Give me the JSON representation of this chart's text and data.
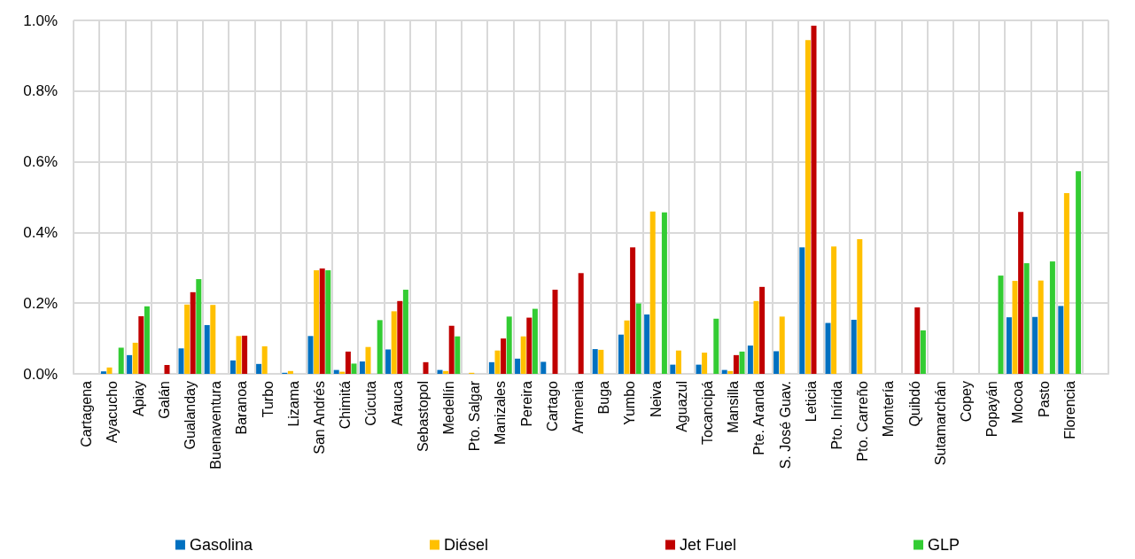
{
  "chart_data": {
    "type": "bar",
    "categories": [
      "Cartagena",
      "Ayacucho",
      "Apiay",
      "Galán",
      "Gualanday",
      "Buenaventura",
      "Baranoa",
      "Turbo",
      "Lizama",
      "San Andrés",
      "Chimitá",
      "Cúcuta",
      "Arauca",
      "Sebastopol",
      "Medellín",
      "Pto. Salgar",
      "Manizales",
      "Pereira",
      "Cartago",
      "Armenia",
      "Buga",
      "Yumbo",
      "Neiva",
      "Aguazul",
      "Tocancipá",
      "Mansilla",
      "Pte. Aranda",
      "S. José Guav.",
      "Leticia",
      "Pto. Inírida",
      "Pto. Carreño",
      "Montería",
      "Quibdó",
      "Sutamarchán",
      "Copey",
      "Popayán",
      "Mocoa",
      "Pasto",
      "Florencia",
      null
    ],
    "series": [
      {
        "name": "Gasolina",
        "color": "#0070c0",
        "values": [
          null,
          0.007,
          0.053,
          null,
          0.072,
          0.138,
          0.038,
          0.028,
          0.003,
          0.107,
          0.011,
          0.035,
          0.069,
          null,
          0.011,
          null,
          0.033,
          0.043,
          0.034,
          null,
          0.07,
          0.111,
          0.168,
          0.026,
          0.026,
          0.011,
          0.08,
          0.064,
          0.358,
          0.144,
          0.153,
          null,
          null,
          null,
          null,
          null,
          0.16,
          0.161,
          0.192,
          null
        ]
      },
      {
        "name": "Diésel",
        "color": "#ffc000",
        "values": [
          null,
          0.018,
          0.088,
          null,
          0.196,
          0.195,
          0.107,
          0.078,
          0.008,
          0.293,
          0.006,
          0.076,
          0.177,
          null,
          0.008,
          0.003,
          0.066,
          0.106,
          null,
          null,
          0.068,
          0.151,
          0.459,
          0.066,
          0.06,
          0.008,
          0.206,
          0.162,
          0.944,
          0.36,
          0.381,
          null,
          null,
          null,
          null,
          null,
          0.263,
          0.264,
          0.511,
          null
        ]
      },
      {
        "name": "Jet Fuel",
        "color": "#c00000",
        "values": [
          null,
          null,
          0.163,
          0.025,
          0.231,
          null,
          0.108,
          null,
          null,
          0.298,
          0.063,
          null,
          0.206,
          0.033,
          0.136,
          null,
          0.1,
          0.159,
          0.238,
          0.285,
          null,
          0.358,
          null,
          null,
          null,
          0.053,
          0.246,
          null,
          0.985,
          null,
          null,
          null,
          0.188,
          null,
          null,
          null,
          0.458,
          null,
          null,
          null
        ]
      },
      {
        "name": "GLP",
        "color": "#33cc33",
        "values": [
          null,
          0.074,
          0.191,
          null,
          0.268,
          null,
          null,
          null,
          null,
          0.293,
          0.029,
          0.152,
          0.238,
          null,
          0.106,
          null,
          0.162,
          0.184,
          null,
          null,
          null,
          0.199,
          0.457,
          null,
          0.156,
          0.063,
          null,
          null,
          null,
          null,
          null,
          null,
          0.123,
          null,
          null,
          0.278,
          0.313,
          0.318,
          0.573,
          null
        ]
      }
    ],
    "ylim": [
      0,
      1.0
    ],
    "yticks": [
      {
        "value": 0,
        "label": "0.0%"
      },
      {
        "value": 0.2,
        "label": "0.2%"
      },
      {
        "value": 0.4,
        "label": "0.4%"
      },
      {
        "value": 0.6,
        "label": "0.6%"
      },
      {
        "value": 0.8,
        "label": "0.8%"
      },
      {
        "value": 1.0,
        "label": "1.0%"
      }
    ],
    "grid": true,
    "legend": "bottom"
  }
}
